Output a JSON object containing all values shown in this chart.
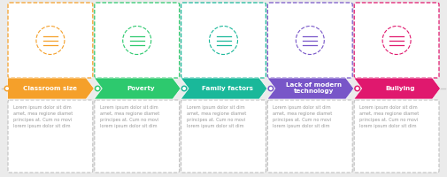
{
  "bg_color": "#ebebeb",
  "steps": [
    {
      "label": "Classroom size",
      "color": "#f5a02a"
    },
    {
      "label": "Poverty",
      "color": "#2dc96e"
    },
    {
      "label": "Family factors",
      "color": "#1ab89a"
    },
    {
      "label": "Lack of modern\ntechnology",
      "color": "#7856c8"
    },
    {
      "label": "Bullying",
      "color": "#e0186e"
    }
  ],
  "lorem_text": "Lorem ipsum dolor sit dim\namet, mea regione diamet\nprincipes at. Cum no movi\nlorem ipsum dolor sit dim",
  "timeline_color": "#cccccc",
  "box_border_color": "#cccccc",
  "text_color": "#aaaaaa"
}
